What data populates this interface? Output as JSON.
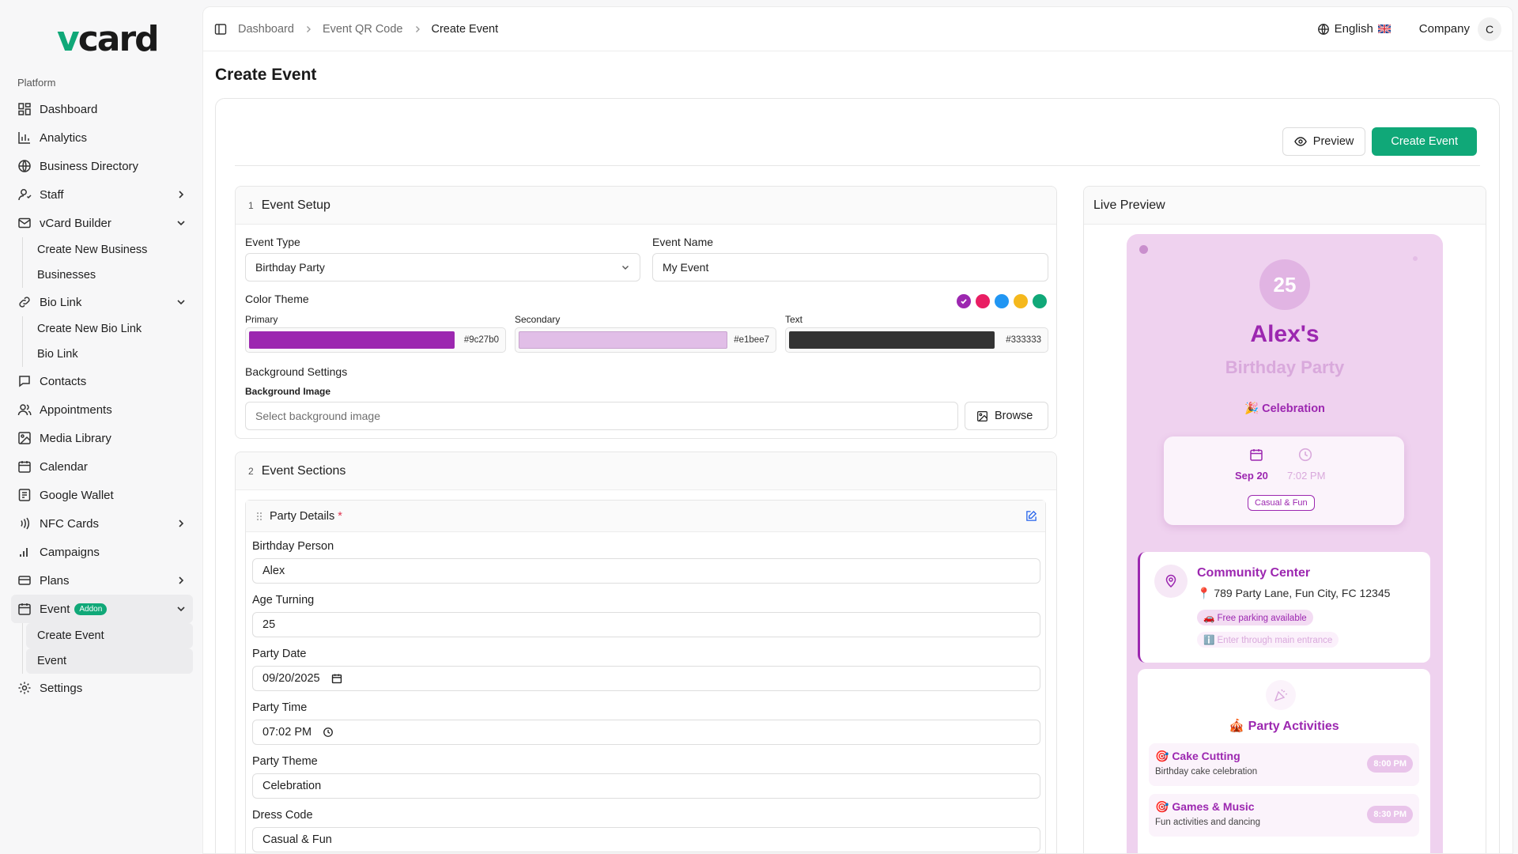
{
  "brand": {
    "logo_v": "v",
    "logo_rest": "card"
  },
  "sidebar": {
    "heading": "Platform",
    "items": [
      {
        "label": "Dashboard",
        "icon": "dashboard-icon"
      },
      {
        "label": "Analytics",
        "icon": "bar-chart-icon"
      },
      {
        "label": "Business Directory",
        "icon": "globe-icon"
      },
      {
        "label": "Staff",
        "icon": "user-icon"
      },
      {
        "label": "vCard Builder",
        "icon": "mail-icon"
      },
      {
        "label": "Bio Link",
        "icon": "link-icon"
      },
      {
        "label": "Contacts",
        "icon": "message-icon"
      },
      {
        "label": "Appointments",
        "icon": "users-icon"
      },
      {
        "label": "Media Library",
        "icon": "image-icon"
      },
      {
        "label": "Calendar",
        "icon": "calendar-icon"
      },
      {
        "label": "Google Wallet",
        "icon": "wallet-icon"
      },
      {
        "label": "NFC Cards",
        "icon": "nfc-icon"
      },
      {
        "label": "Campaigns",
        "icon": "signal-icon"
      },
      {
        "label": "Plans",
        "icon": "card-icon"
      },
      {
        "label": "Event",
        "icon": "calendar-icon",
        "badge": "Addon"
      },
      {
        "label": "Settings",
        "icon": "gear-icon"
      }
    ],
    "vcard_sub": [
      "Create New Business",
      "Businesses"
    ],
    "biolink_sub": [
      "Create New Bio Link",
      "Bio Link"
    ],
    "event_sub": [
      "Create Event",
      "Event"
    ]
  },
  "topbar": {
    "breadcrumbs": [
      "Dashboard",
      "Event QR Code",
      "Create Event"
    ],
    "language": "English",
    "company": "Company",
    "avatar_initial": "C"
  },
  "page": {
    "title": "Create Event",
    "preview_button": "Preview",
    "create_button": "Create Event"
  },
  "setup": {
    "num": "1",
    "title": "Event Setup",
    "event_type_label": "Event Type",
    "event_type_value": "Birthday Party",
    "event_name_label": "Event Name",
    "event_name_value": "My Event",
    "color_theme_label": "Color Theme",
    "primary_label": "Primary",
    "primary_hex": "#9c27b0",
    "secondary_label": "Secondary",
    "secondary_hex": "#e1bee7",
    "text_label": "Text",
    "text_hex": "#333333",
    "preset_colors": [
      "#9c27b0",
      "#e91e63",
      "#2196f3",
      "#f5b81c",
      "#10a878"
    ],
    "bg_settings_label": "Background Settings",
    "bg_image_label": "Background Image",
    "bg_image_placeholder": "Select background image",
    "browse_button": "Browse"
  },
  "sections": {
    "num": "2",
    "title": "Event Sections",
    "party_details": "Party Details",
    "required_mark": "*",
    "fields": [
      {
        "label": "Birthday Person",
        "value": "Alex"
      },
      {
        "label": "Age Turning",
        "value": "25"
      },
      {
        "label": "Party Date",
        "value": "09/20/2025"
      },
      {
        "label": "Party Time",
        "value": "07:02 PM"
      },
      {
        "label": "Party Theme",
        "value": "Celebration"
      },
      {
        "label": "Dress Code",
        "value": "Casual & Fun"
      }
    ]
  },
  "preview": {
    "title": "Live Preview",
    "age": "25",
    "name": "Alex's",
    "subtitle": "Birthday Party",
    "theme": "🎉 Celebration",
    "date": "Sep 20",
    "time": "7:02 PM",
    "dress_code": "Casual & Fun",
    "venue_title": "Community Center",
    "venue_address": "📍 789 Party Lane, Fun City, FC 12345",
    "venue_parking": "🚗 Free parking available",
    "venue_entrance": "ℹ️ Enter through main entrance",
    "activities_title": "🎪 Party Activities",
    "activities": [
      {
        "name": "🎯 Cake Cutting",
        "desc": "Birthday cake celebration",
        "time": "8:00 PM"
      },
      {
        "name": "🎯 Games & Music",
        "desc": "Fun activities and dancing",
        "time": "8:30 PM"
      }
    ]
  }
}
